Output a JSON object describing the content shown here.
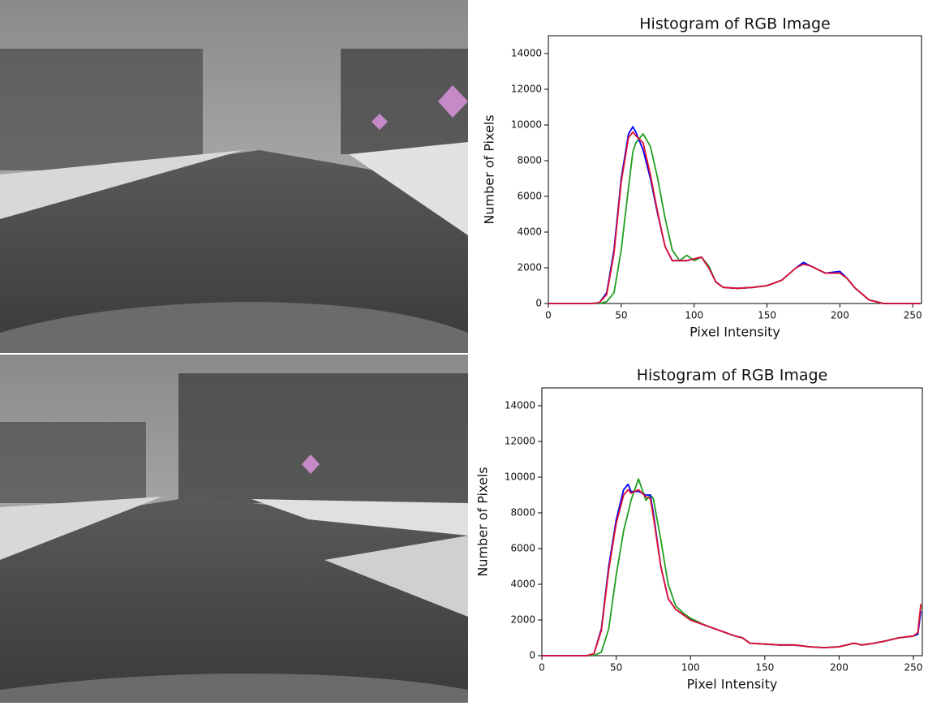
{
  "chart_data": [
    {
      "type": "line",
      "title": "Histogram of RGB Image",
      "x_label": "Pixel Intensity",
      "y_label": "Number of Pixels",
      "xlim": [
        0,
        256
      ],
      "xticks": [
        0,
        50,
        100,
        150,
        200,
        250
      ],
      "ylim": [
        0,
        15000
      ],
      "yticks": [
        0,
        2000,
        4000,
        6000,
        8000,
        10000,
        12000,
        14000
      ],
      "x": [
        0,
        10,
        20,
        30,
        35,
        40,
        45,
        50,
        55,
        58,
        60,
        65,
        70,
        75,
        80,
        85,
        90,
        95,
        100,
        105,
        110,
        115,
        120,
        130,
        140,
        150,
        160,
        170,
        175,
        180,
        190,
        200,
        205,
        210,
        220,
        230,
        240,
        255
      ],
      "series": [
        {
          "color": "#1f9f1f",
          "values": [
            0,
            0,
            0,
            0,
            0,
            100,
            600,
            3000,
            6500,
            8500,
            9000,
            9500,
            8800,
            7000,
            4800,
            3000,
            2400,
            2700,
            2400,
            2600,
            2100,
            1200,
            900,
            850,
            900,
            1000,
            1300,
            2000,
            2300,
            2100,
            1700,
            1700,
            1400,
            900,
            200,
            0,
            0,
            0
          ]
        },
        {
          "color": "#0000ff",
          "values": [
            0,
            0,
            0,
            0,
            50,
            600,
            3000,
            7000,
            9500,
            9900,
            9600,
            8600,
            7000,
            5000,
            3200,
            2400,
            2400,
            2400,
            2500,
            2600,
            2000,
            1200,
            900,
            850,
            900,
            1000,
            1300,
            2000,
            2300,
            2100,
            1700,
            1800,
            1400,
            900,
            200,
            0,
            0,
            0
          ]
        },
        {
          "color": "#e0102f",
          "values": [
            0,
            0,
            0,
            0,
            50,
            500,
            2800,
            6800,
            9300,
            9600,
            9400,
            9000,
            7200,
            5100,
            3200,
            2400,
            2400,
            2400,
            2500,
            2600,
            2000,
            1200,
            900,
            850,
            900,
            1000,
            1300,
            2000,
            2200,
            2100,
            1700,
            1700,
            1400,
            900,
            200,
            0,
            0,
            0
          ]
        }
      ]
    },
    {
      "type": "line",
      "title": "Histogram of RGB Image",
      "x_label": "Pixel Intensity",
      "y_label": "Number of Pixels",
      "xlim": [
        0,
        256
      ],
      "xticks": [
        0,
        50,
        100,
        150,
        200,
        250
      ],
      "ylim": [
        0,
        15000
      ],
      "yticks": [
        0,
        2000,
        4000,
        6000,
        8000,
        10000,
        12000,
        14000
      ],
      "x": [
        0,
        10,
        20,
        30,
        35,
        40,
        45,
        50,
        55,
        58,
        60,
        65,
        70,
        73,
        75,
        80,
        85,
        90,
        95,
        100,
        110,
        120,
        130,
        135,
        140,
        150,
        160,
        170,
        180,
        190,
        200,
        210,
        215,
        220,
        230,
        240,
        250,
        253,
        255
      ],
      "series": [
        {
          "color": "#1f9f1f",
          "values": [
            0,
            0,
            0,
            0,
            0,
            200,
            1500,
            4500,
            7000,
            8000,
            8700,
            9900,
            8700,
            9000,
            8800,
            6500,
            4000,
            2800,
            2400,
            2100,
            1700,
            1400,
            1100,
            1000,
            700,
            650,
            600,
            600,
            500,
            450,
            500,
            700,
            600,
            650,
            800,
            1000,
            1100,
            1200,
            2800
          ]
        },
        {
          "color": "#0000ff",
          "values": [
            0,
            0,
            0,
            0,
            100,
            1500,
            5000,
            7600,
            9300,
            9600,
            9200,
            9200,
            9000,
            9000,
            8000,
            5000,
            3200,
            2600,
            2300,
            2000,
            1700,
            1400,
            1100,
            1000,
            700,
            650,
            600,
            600,
            500,
            450,
            500,
            700,
            600,
            650,
            800,
            1000,
            1100,
            1200,
            2500
          ]
        },
        {
          "color": "#e0102f",
          "values": [
            0,
            0,
            0,
            0,
            100,
            1400,
            4800,
            7400,
            9000,
            9300,
            9100,
            9300,
            8900,
            8800,
            7800,
            5000,
            3200,
            2600,
            2300,
            2000,
            1700,
            1400,
            1100,
            1000,
            700,
            650,
            600,
            600,
            500,
            450,
            500,
            700,
            600,
            650,
            800,
            1000,
            1100,
            1300,
            2900
          ]
        }
      ]
    }
  ]
}
